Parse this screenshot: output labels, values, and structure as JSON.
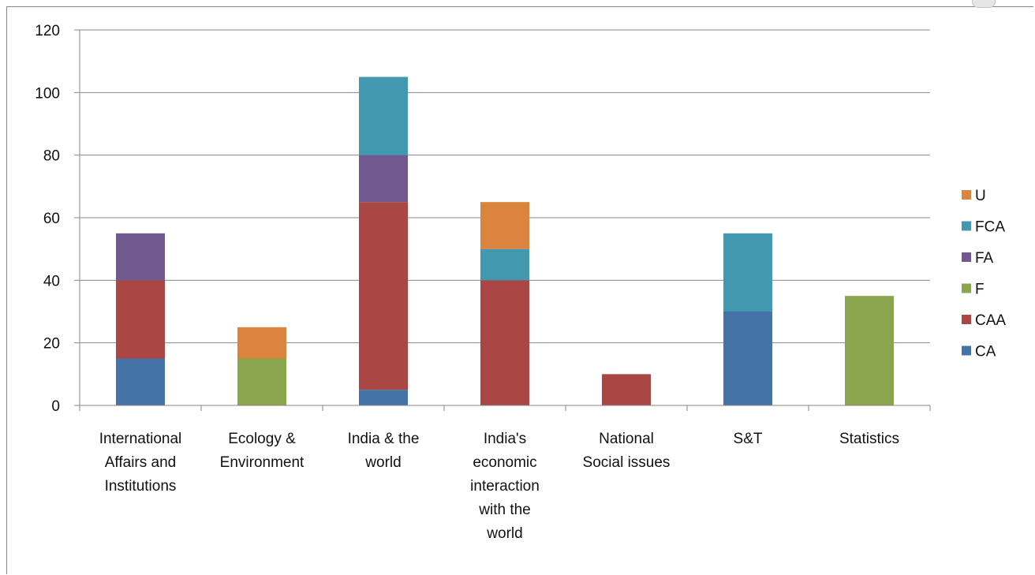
{
  "chart_data": {
    "type": "bar",
    "stacked": true,
    "title": "",
    "xlabel": "",
    "ylabel": "",
    "ylim": [
      0,
      120
    ],
    "yticks": [
      0,
      20,
      40,
      60,
      80,
      100,
      120
    ],
    "grid": true,
    "legend_position": "right",
    "categories": [
      "International Affairs and Institutions",
      "Ecology & Environment",
      "India & the world",
      "India's economic interaction with the world",
      "National Social issues",
      "S&T",
      "Statistics"
    ],
    "category_lines": [
      [
        "International",
        "Affairs and",
        "Institutions"
      ],
      [
        "Ecology &",
        "Environment"
      ],
      [
        "India & the",
        "world"
      ],
      [
        "India's",
        "economic",
        "interaction",
        "with the",
        "world"
      ],
      [
        "National",
        "Social issues"
      ],
      [
        "S&T"
      ],
      [
        "Statistics"
      ]
    ],
    "series": [
      {
        "name": "CA",
        "color": "#4572a7",
        "values": [
          15,
          0,
          5,
          0,
          0,
          30,
          0
        ]
      },
      {
        "name": "CAA",
        "color": "#aa4643",
        "values": [
          25,
          0,
          60,
          40,
          10,
          0,
          0
        ]
      },
      {
        "name": "F",
        "color": "#89a54e",
        "values": [
          0,
          15,
          0,
          0,
          0,
          0,
          35
        ]
      },
      {
        "name": "FA",
        "color": "#71588f",
        "values": [
          15,
          0,
          15,
          0,
          0,
          0,
          0
        ]
      },
      {
        "name": "FCA",
        "color": "#4198af",
        "values": [
          0,
          0,
          25,
          10,
          0,
          25,
          0
        ]
      },
      {
        "name": "U",
        "color": "#db843d",
        "values": [
          0,
          10,
          0,
          15,
          0,
          0,
          0
        ]
      }
    ]
  }
}
